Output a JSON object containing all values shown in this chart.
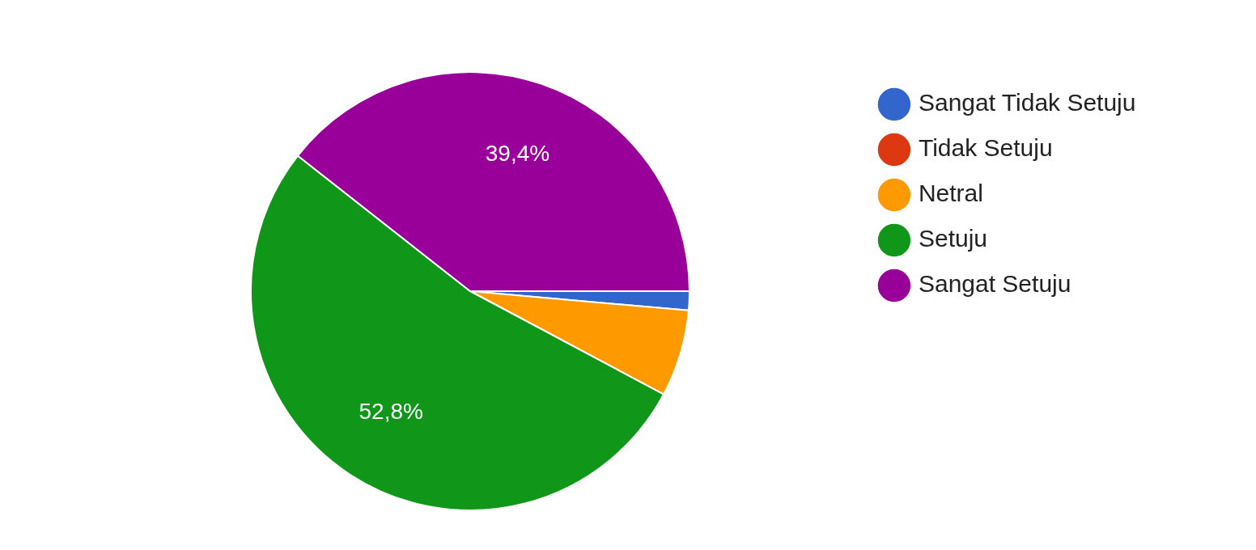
{
  "chart_data": {
    "type": "pie",
    "categories": [
      "Sangat Tidak Setuju",
      "Tidak Setuju",
      "Netral",
      "Setuju",
      "Sangat Setuju"
    ],
    "values": [
      1.4,
      0,
      6.4,
      52.8,
      39.4
    ],
    "colors": [
      "#3366cc",
      "#dc3912",
      "#ff9900",
      "#109618",
      "#990099"
    ],
    "value_labels": [
      null,
      null,
      null,
      "52,8%",
      "39,4%"
    ],
    "legend": "top right"
  }
}
